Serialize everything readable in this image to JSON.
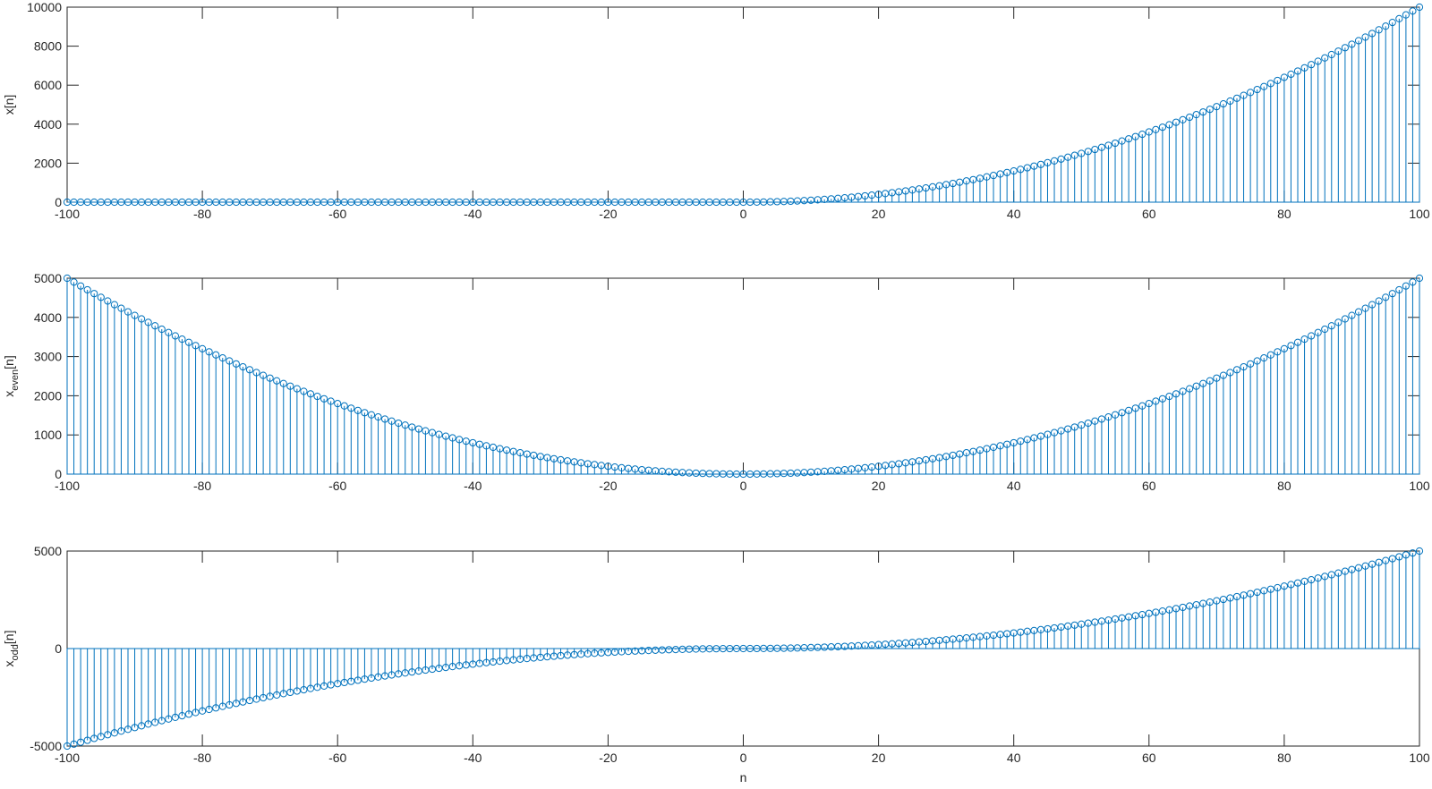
{
  "chart_data": [
    {
      "type": "stem",
      "ylabel": {
        "main": "x",
        "sub": "",
        "tail": "[n]"
      },
      "xlabel": "",
      "xlim": [
        -100,
        100
      ],
      "ylim": [
        0,
        10000
      ],
      "xticks": [
        -100,
        -80,
        -60,
        -40,
        -20,
        0,
        20,
        40,
        60,
        80,
        100
      ],
      "yticks": [
        0,
        2000,
        4000,
        6000,
        8000,
        10000
      ],
      "color": "#0072BD",
      "series": [
        {
          "n_range": [
            -100,
            100
          ],
          "step": 1,
          "rule": "x[n] = n^2 for n >= 0, else 0",
          "peak": 10000
        }
      ]
    },
    {
      "type": "stem",
      "ylabel": {
        "main": "x",
        "sub": "even",
        "tail": "[n]"
      },
      "xlabel": "",
      "xlim": [
        -100,
        100
      ],
      "ylim": [
        0,
        5000
      ],
      "xticks": [
        -100,
        -80,
        -60,
        -40,
        -20,
        0,
        20,
        40,
        60,
        80,
        100
      ],
      "yticks": [
        0,
        1000,
        2000,
        3000,
        4000,
        5000
      ],
      "color": "#0072BD",
      "series": [
        {
          "n_range": [
            -100,
            100
          ],
          "step": 1,
          "rule": "x_even[n] = n^2 / 2",
          "peak": 5000
        }
      ]
    },
    {
      "type": "stem",
      "ylabel": {
        "main": "x",
        "sub": "odd",
        "tail": "[n]"
      },
      "xlabel": "n",
      "xlim": [
        -100,
        100
      ],
      "ylim": [
        -5000,
        5000
      ],
      "xticks": [
        -100,
        -80,
        -60,
        -40,
        -20,
        0,
        20,
        40,
        60,
        80,
        100
      ],
      "yticks": [
        -5000,
        0,
        5000
      ],
      "color": "#0072BD",
      "series": [
        {
          "n_range": [
            -100,
            100
          ],
          "step": 1,
          "rule": "x_odd[n] = sign(n) * n^2 / 2",
          "peak": 5000
        }
      ]
    }
  ]
}
